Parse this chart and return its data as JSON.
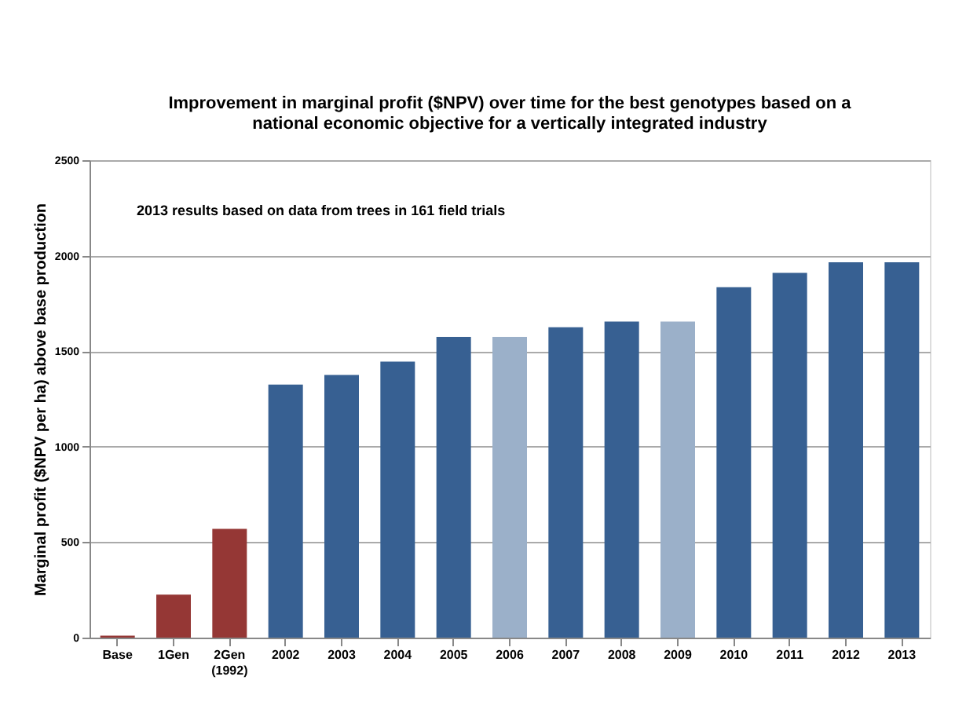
{
  "chart_data": {
    "type": "bar",
    "title": [
      "Improvement in marginal profit ($NPV) over time for the best genotypes based on a",
      "national economic objective for a vertically integrated industry"
    ],
    "ylabel": "Marginal profit ($NPV per ha) above base production",
    "categories": [
      "Base",
      "1Gen",
      "2Gen\n(1992)",
      "2002",
      "2003",
      "2004",
      "2005",
      "2006",
      "2007",
      "2008",
      "2009",
      "2010",
      "2011",
      "2012",
      "2013"
    ],
    "values": [
      10,
      225,
      570,
      1325,
      1375,
      1445,
      1575,
      1575,
      1625,
      1655,
      1655,
      1835,
      1910,
      1965,
      1965
    ],
    "colors": [
      "#953735",
      "#953735",
      "#953735",
      "#376092",
      "#376092",
      "#376092",
      "#376092",
      "#9bb0c9",
      "#376092",
      "#376092",
      "#9bb0c9",
      "#376092",
      "#376092",
      "#376092",
      "#376092"
    ],
    "ylim": [
      0,
      2500
    ],
    "yticks": [
      0,
      500,
      1000,
      1500,
      2000,
      2500
    ],
    "grid": "y",
    "annotations": [
      {
        "text": "2013 results based on data from trees in 161 field trials"
      }
    ]
  }
}
